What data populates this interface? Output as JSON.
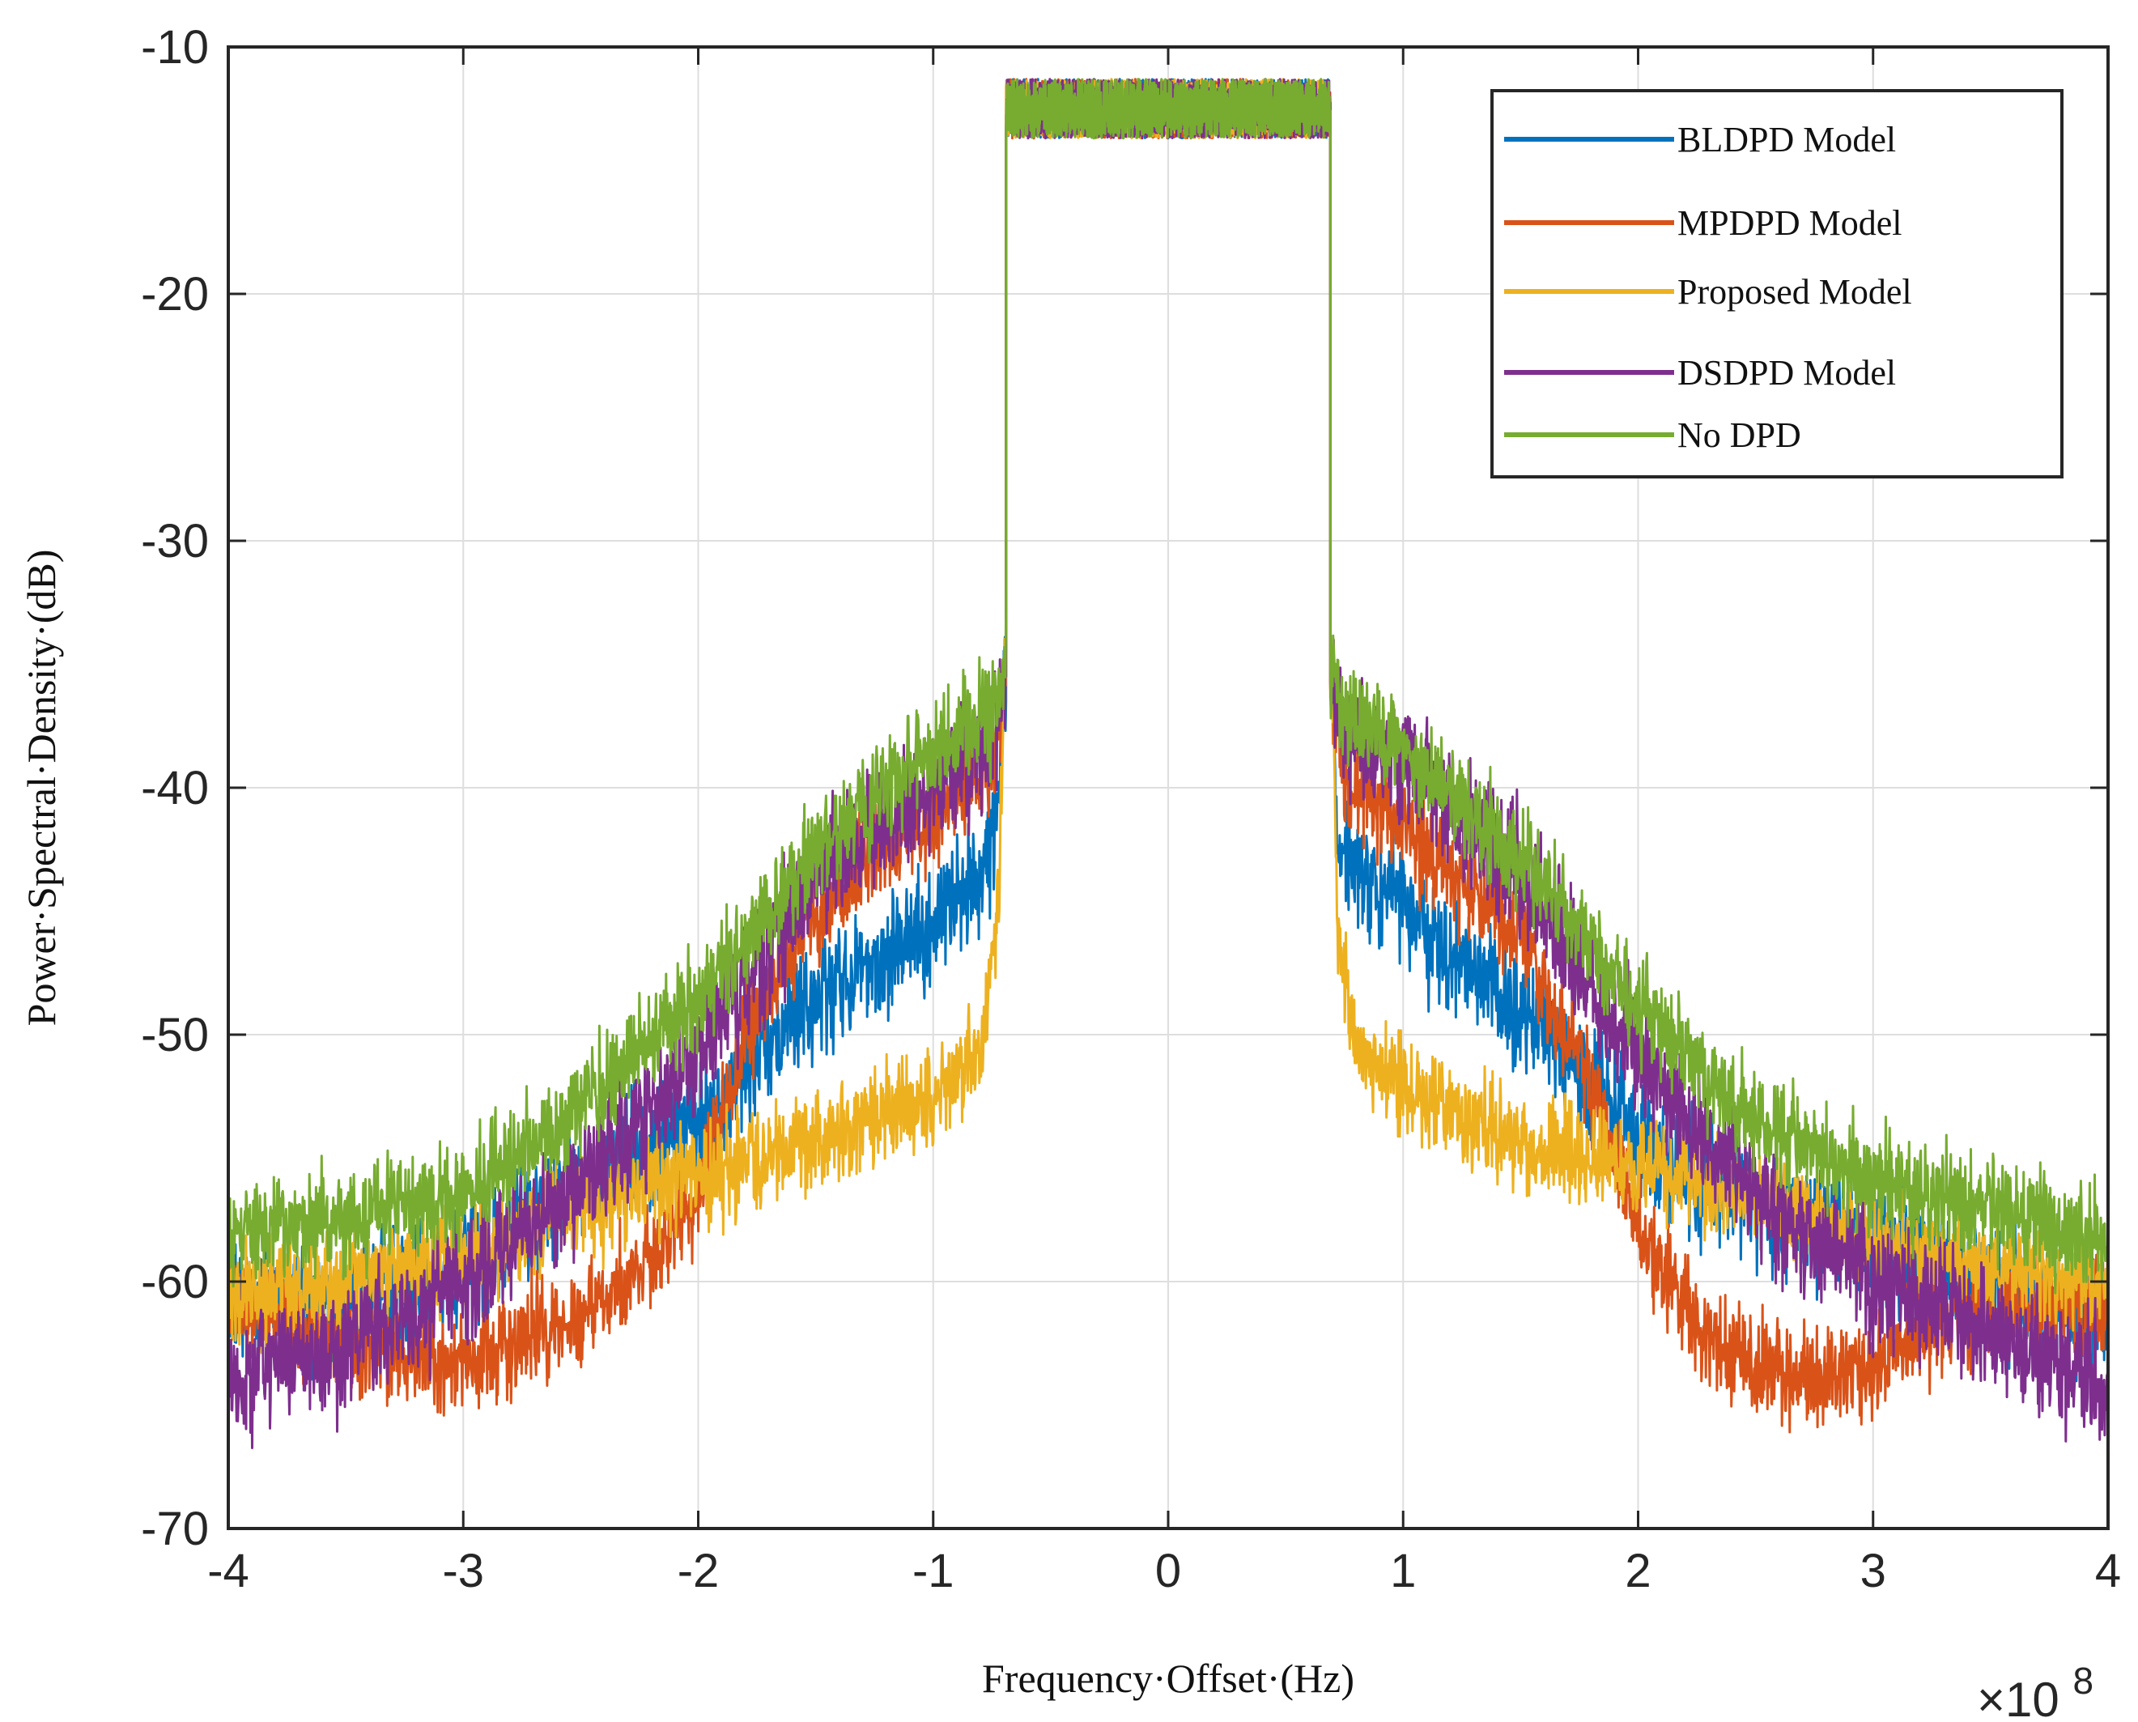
{
  "chart_data": {
    "type": "line",
    "title": "",
    "xlabel": "Frequency·Offset·(Hz)",
    "ylabel": "Power·Spectral·Density·(dB)",
    "x_exponent_base": "×10",
    "x_exponent_power": "8",
    "xlim": [
      -4,
      4
    ],
    "ylim": [
      -70,
      -10
    ],
    "xticks": [
      -4,
      -3,
      -2,
      -1,
      0,
      1,
      2,
      3,
      4
    ],
    "xtick_labels": [
      "-4",
      "-3",
      "-2",
      "-1",
      "0",
      "1",
      "2",
      "3",
      "4"
    ],
    "yticks": [
      -10,
      -20,
      -30,
      -40,
      -50,
      -60,
      -70
    ],
    "ytick_labels": [
      "-10",
      "-20",
      "-30",
      "-40",
      "-50",
      "-60",
      "-70"
    ],
    "grid": true,
    "legend_position": "top-right",
    "band_edges": [
      -0.69,
      0.69
    ],
    "series": [
      {
        "name": "BLDPD Model",
        "color": "#0072BD",
        "noise": 1.2,
        "inband": -12.5,
        "left": [
          [
            -4.0,
            -61.0
          ],
          [
            -3.5,
            -61.0
          ],
          [
            -3.0,
            -59.5
          ],
          [
            -2.5,
            -56.0
          ],
          [
            -2.0,
            -53.5
          ],
          [
            -1.5,
            -48.5
          ],
          [
            -1.0,
            -45.5
          ],
          [
            -0.8,
            -43.5
          ],
          [
            -0.72,
            -41.0
          ],
          [
            -0.7,
            -36.0
          ]
        ],
        "right": [
          [
            0.7,
            -36.0
          ],
          [
            0.72,
            -42.0
          ],
          [
            0.8,
            -43.5
          ],
          [
            1.0,
            -45.0
          ],
          [
            1.5,
            -49.0
          ],
          [
            2.0,
            -54.0
          ],
          [
            2.5,
            -57.0
          ],
          [
            3.0,
            -58.5
          ],
          [
            3.5,
            -60.0
          ],
          [
            4.0,
            -61.5
          ]
        ]
      },
      {
        "name": "MPDPD Model",
        "color": "#D95319",
        "noise": 1.0,
        "inband": -12.5,
        "left": [
          [
            -4.0,
            -61.0
          ],
          [
            -3.5,
            -62.5
          ],
          [
            -3.0,
            -63.5
          ],
          [
            -2.5,
            -61.5
          ],
          [
            -2.2,
            -59.0
          ],
          [
            -2.0,
            -56.5
          ],
          [
            -1.8,
            -50.0
          ],
          [
            -1.5,
            -45.0
          ],
          [
            -1.0,
            -41.0
          ],
          [
            -0.75,
            -39.0
          ],
          [
            -0.7,
            -36.0
          ]
        ],
        "right": [
          [
            0.7,
            -36.0
          ],
          [
            0.75,
            -39.5
          ],
          [
            1.0,
            -41.5
          ],
          [
            1.5,
            -46.0
          ],
          [
            1.8,
            -52.0
          ],
          [
            2.0,
            -58.0
          ],
          [
            2.3,
            -62.5
          ],
          [
            2.7,
            -64.0
          ],
          [
            3.0,
            -63.5
          ],
          [
            3.3,
            -61.5
          ],
          [
            4.0,
            -61.0
          ]
        ]
      },
      {
        "name": "Proposed Model",
        "color": "#EDB120",
        "noise": 1.0,
        "inband": -12.5,
        "left": [
          [
            -4.0,
            -60.5
          ],
          [
            -3.5,
            -60.0
          ],
          [
            -3.0,
            -59.0
          ],
          [
            -2.5,
            -57.0
          ],
          [
            -2.0,
            -55.5
          ],
          [
            -1.5,
            -54.5
          ],
          [
            -1.0,
            -52.5
          ],
          [
            -0.8,
            -50.5
          ],
          [
            -0.72,
            -45.0
          ],
          [
            -0.7,
            -36.0
          ]
        ],
        "right": [
          [
            0.7,
            -36.0
          ],
          [
            0.72,
            -46.0
          ],
          [
            0.8,
            -50.5
          ],
          [
            1.0,
            -52.0
          ],
          [
            1.5,
            -54.5
          ],
          [
            2.0,
            -55.5
          ],
          [
            2.5,
            -56.5
          ],
          [
            3.0,
            -58.5
          ],
          [
            3.5,
            -59.5
          ],
          [
            4.0,
            -60.0
          ]
        ]
      },
      {
        "name": "DSDPD Model",
        "color": "#7E2F8E",
        "noise": 1.2,
        "inband": -12.5,
        "left": [
          [
            -4.0,
            -64.0
          ],
          [
            -3.5,
            -62.5
          ],
          [
            -3.0,
            -60.0
          ],
          [
            -2.5,
            -56.0
          ],
          [
            -2.0,
            -51.0
          ],
          [
            -1.5,
            -43.5
          ],
          [
            -1.0,
            -40.0
          ],
          [
            -0.75,
            -38.0
          ],
          [
            -0.7,
            -36.0
          ]
        ],
        "right": [
          [
            0.7,
            -36.0
          ],
          [
            0.75,
            -38.0
          ],
          [
            1.0,
            -39.0
          ],
          [
            1.5,
            -43.5
          ],
          [
            2.0,
            -51.0
          ],
          [
            2.5,
            -56.5
          ],
          [
            3.0,
            -60.0
          ],
          [
            3.5,
            -62.0
          ],
          [
            4.0,
            -64.0
          ]
        ]
      },
      {
        "name": "No DPD",
        "color": "#77AC30",
        "noise": 1.0,
        "inband": -12.5,
        "left": [
          [
            -4.0,
            -58.0
          ],
          [
            -3.5,
            -57.5
          ],
          [
            -3.0,
            -56.5
          ],
          [
            -2.5,
            -53.0
          ],
          [
            -2.0,
            -48.5
          ],
          [
            -1.5,
            -42.5
          ],
          [
            -1.0,
            -38.5
          ],
          [
            -0.75,
            -37.0
          ],
          [
            -0.7,
            -35.0
          ]
        ],
        "right": [
          [
            0.7,
            -35.0
          ],
          [
            0.75,
            -37.0
          ],
          [
            1.0,
            -38.5
          ],
          [
            1.5,
            -43.0
          ],
          [
            2.0,
            -49.0
          ],
          [
            2.5,
            -53.5
          ],
          [
            3.0,
            -56.0
          ],
          [
            3.5,
            -57.0
          ],
          [
            4.0,
            -58.5
          ]
        ]
      }
    ]
  }
}
